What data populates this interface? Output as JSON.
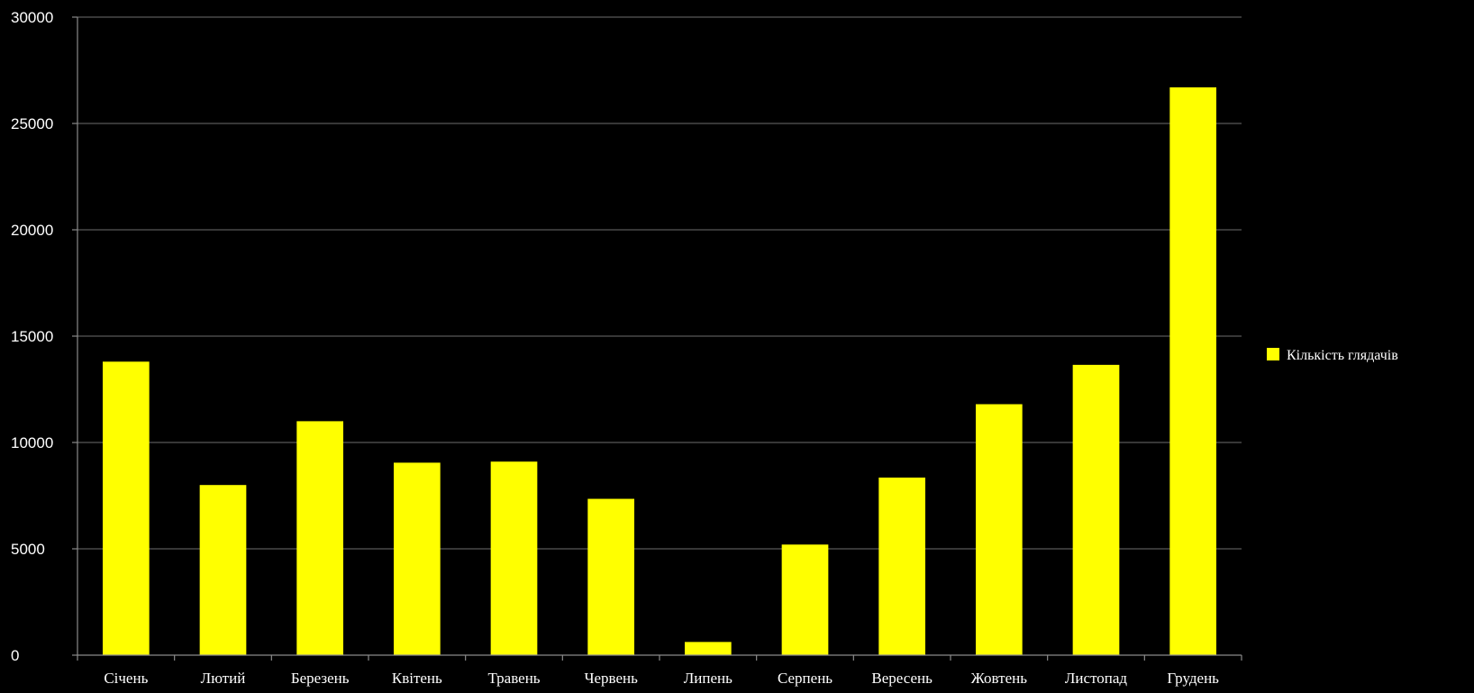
{
  "chart_data": {
    "type": "bar",
    "categories": [
      "Січень",
      "Лютий",
      "Березень",
      "Квітень",
      "Травень",
      "Червень",
      "Липень",
      "Серпень",
      "Вересень",
      "Жовтень",
      "Листопад",
      "Грудень"
    ],
    "series": [
      {
        "name": "Кількість глядачів",
        "color": "#ffff00",
        "values": [
          13800,
          8000,
          11000,
          9050,
          9100,
          7350,
          620,
          5200,
          8350,
          11800,
          13650,
          26700
        ]
      }
    ],
    "ylim": [
      0,
      30000
    ],
    "yticks": [
      0,
      5000,
      10000,
      15000,
      20000,
      25000,
      30000
    ],
    "grid": true,
    "legend_position": "right",
    "background": "#000000",
    "title": "",
    "xlabel": "",
    "ylabel": ""
  }
}
